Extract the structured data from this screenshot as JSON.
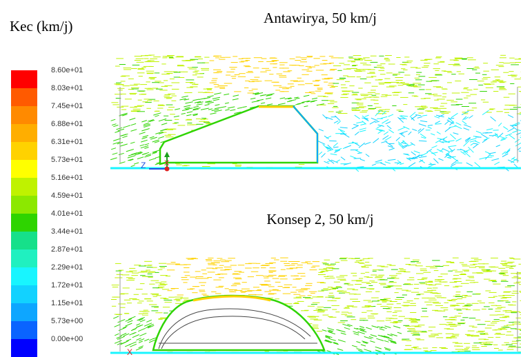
{
  "legend": {
    "title": "Kec (km/j)",
    "ticks": [
      "8.60e+01",
      "8.03e+01",
      "7.45e+01",
      "6.88e+01",
      "6.31e+01",
      "5.73e+01",
      "5.16e+01",
      "4.59e+01",
      "4.01e+01",
      "3.44e+01",
      "2.87e+01",
      "2.29e+01",
      "1.72e+01",
      "1.15e+01",
      "5.73e+00",
      "0.00e+00"
    ],
    "colors": [
      "#ff0000",
      "#ff5a00",
      "#ff8a00",
      "#ffae00",
      "#ffd200",
      "#ffff00",
      "#bff200",
      "#8ce800",
      "#2ed400",
      "#16e08a",
      "#20f0c0",
      "#18f5ff",
      "#12d2ff",
      "#0ea6ff",
      "#0a64ff",
      "#0000ff"
    ]
  },
  "plots": {
    "top_title": "Antawirya, 50 km/j",
    "bottom_title": "Konsep 2, 50 km/j",
    "axis_z": "Z",
    "axis_x": "X"
  },
  "palette": {
    "fast": "#ffd200",
    "mid": "#bff200",
    "green": "#2ed400",
    "slow": "#18f5ff",
    "slowest": "#12d2ff"
  }
}
